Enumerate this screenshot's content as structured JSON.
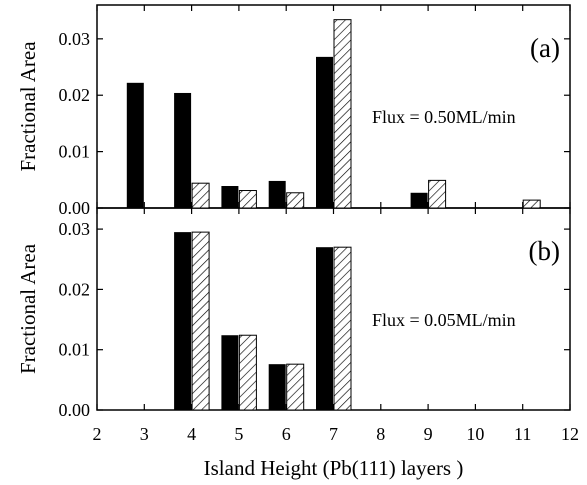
{
  "chart_data": {
    "type": "bar",
    "xlabel": "Island Height (Pb(111) layers )",
    "x_ticks": [
      2,
      3,
      4,
      5,
      6,
      7,
      8,
      9,
      10,
      11,
      12
    ],
    "xlim": [
      2,
      12
    ],
    "series_styles": {
      "solid": {
        "fill": "#000000"
      },
      "hatched": {
        "fill": "hatch",
        "stroke": "#000000"
      }
    },
    "panels": [
      {
        "label": "(a)",
        "annotation": "Flux = 0.50ML/min",
        "ylabel": "Fractional Area",
        "ylim": [
          0,
          0.036
        ],
        "y_ticks": [
          "0.00",
          "0.01",
          "0.02",
          "0.03"
        ],
        "series": [
          {
            "style": "solid",
            "x": [
              3,
              4,
              5,
              6,
              7,
              9
            ],
            "values": [
              0.0222,
              0.0204,
              0.0039,
              0.0048,
              0.0268,
              0.0027
            ]
          },
          {
            "style": "hatched",
            "x": [
              4,
              5,
              6,
              7,
              9,
              11
            ],
            "values": [
              0.0044,
              0.0031,
              0.0027,
              0.0334,
              0.0049,
              0.0014
            ]
          }
        ]
      },
      {
        "label": "(b)",
        "annotation": "Flux = 0.05ML/min",
        "ylabel": "Fractional Area",
        "ylim": [
          0,
          0.0335
        ],
        "y_ticks": [
          "0.00",
          "0.01",
          "0.02",
          "0.03"
        ],
        "series": [
          {
            "style": "solid",
            "x": [
              4,
              5,
              6,
              7
            ],
            "values": [
              0.0295,
              0.0124,
              0.0076,
              0.027
            ]
          },
          {
            "style": "hatched",
            "x": [
              4,
              5,
              6,
              7
            ],
            "values": [
              0.0295,
              0.0124,
              0.0076,
              0.027
            ]
          }
        ]
      }
    ]
  }
}
